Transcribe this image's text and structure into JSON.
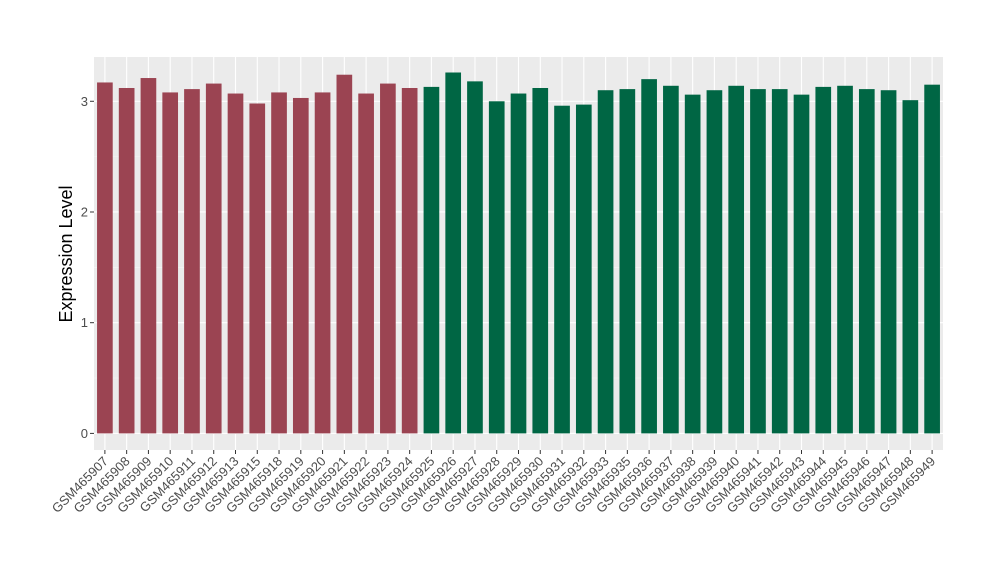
{
  "chart_data": {
    "type": "bar",
    "title": "",
    "xlabel": "",
    "ylabel": "Expression Level",
    "ylim": [
      -0.15,
      3.4
    ],
    "yticks": [
      0,
      1,
      2,
      3
    ],
    "grid": true,
    "legend": "none",
    "categories": [
      "GSM465907",
      "GSM465908",
      "GSM465909",
      "GSM465910",
      "GSM465911",
      "GSM465912",
      "GSM465913",
      "GSM465915",
      "GSM465918",
      "GSM465919",
      "GSM465920",
      "GSM465921",
      "GSM465922",
      "GSM465923",
      "GSM465924",
      "GSM465925",
      "GSM465926",
      "GSM465927",
      "GSM465928",
      "GSM465929",
      "GSM465930",
      "GSM465931",
      "GSM465932",
      "GSM465933",
      "GSM465935",
      "GSM465936",
      "GSM465937",
      "GSM465938",
      "GSM465939",
      "GSM465940",
      "GSM465941",
      "GSM465942",
      "GSM465943",
      "GSM465944",
      "GSM465945",
      "GSM465946",
      "GSM465947",
      "GSM465948",
      "GSM465949"
    ],
    "values": [
      3.17,
      3.12,
      3.21,
      3.08,
      3.11,
      3.16,
      3.07,
      2.98,
      3.08,
      3.03,
      3.08,
      3.24,
      3.07,
      3.16,
      3.12,
      3.13,
      3.26,
      3.18,
      3.0,
      3.07,
      3.12,
      2.96,
      2.97,
      3.1,
      3.11,
      3.2,
      3.14,
      3.06,
      3.1,
      3.14,
      3.11,
      3.11,
      3.06,
      3.13,
      3.14,
      3.11,
      3.1,
      3.01,
      3.15
    ],
    "groups": [
      {
        "color": "#9b4452",
        "start": 0,
        "count": 15
      },
      {
        "color": "#006644",
        "start": 15,
        "count": 24
      }
    ]
  }
}
